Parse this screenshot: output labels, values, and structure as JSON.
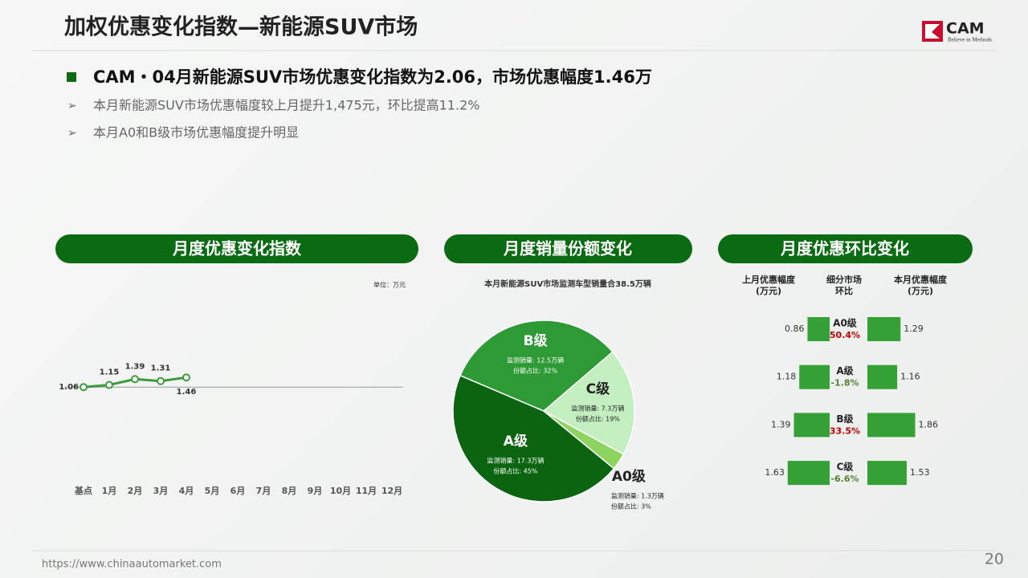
{
  "header": {
    "title": "加权优惠变化指数—新能源SUV市场",
    "logo": "CAM",
    "tagline": "Believe in Methods"
  },
  "summary": {
    "headline": "CAM・04月新能源SUV市场优惠变化指数为2.06，市场优惠幅度1.46万",
    "bullets": [
      "本月新能源SUV市场优惠幅度较上月提升1,475元，环比提高11.2%",
      "本月A0和B级市场优惠幅度提升明显"
    ]
  },
  "footer": {
    "url": "https://www.chinaautomarket.com",
    "page": "20"
  },
  "chart_data": [
    {
      "type": "line",
      "title": "月度优惠变化指数",
      "unit": "单位：万元",
      "categories": [
        "基点",
        "1月",
        "2月",
        "3月",
        "4月",
        "5月",
        "6月",
        "7月",
        "8月",
        "9月",
        "10月",
        "11月",
        "12月"
      ],
      "values": [
        1.06,
        1.15,
        1.39,
        1.31,
        1.46,
        null,
        null,
        null,
        null,
        null,
        null,
        null,
        null
      ],
      "color": "#3d9b3d",
      "ylim": [
        0,
        10
      ]
    },
    {
      "type": "pie",
      "title": "月度销量份额变化",
      "subtitle": "本月新能源SUV市场监测车型销量合38.5万辆",
      "categories": [
        "B级",
        "C级",
        "A0级",
        "A级"
      ],
      "values": [
        32,
        19,
        3,
        45
      ],
      "value_labels": [
        "份额占比: 32%",
        "份额占比: 19%",
        "份额占比: 3%",
        "份额占比: 45%"
      ],
      "sales_labels": [
        "监测销量: 12.5万辆",
        "监测销量: 7.3万辆",
        "监测销量: 1.3万辆",
        "监测销量: 17.3万辆"
      ],
      "colors": [
        "#2e9a35",
        "#c3efc0",
        "#8dd35f",
        "#0b6410"
      ],
      "text_colors": [
        "#ffffff",
        "#222222",
        "#222222",
        "#ffffff"
      ]
    },
    {
      "type": "butterfly",
      "title": "月度优惠环比变化",
      "categories": [
        "A0级",
        "A级",
        "B级",
        "C级"
      ],
      "series": [
        {
          "name": "上月优惠幅度\n(万元)",
          "color": "#35a035",
          "values": [
            0.86,
            1.18,
            1.39,
            1.63
          ]
        },
        {
          "name": "本月优惠幅度\n(万元)",
          "color": "#35a035",
          "values": [
            1.29,
            1.16,
            1.86,
            1.53
          ]
        }
      ],
      "change_name": "细分市场\n环比",
      "changes": [
        50.4,
        -1.8,
        33.5,
        -6.6
      ],
      "change_labels": [
        "50.4%",
        "-1.8%",
        "33.5%",
        "-6.6%"
      ],
      "up_color": "#c00000",
      "down_color": "#548235",
      "xlim": [
        0,
        2
      ]
    }
  ]
}
